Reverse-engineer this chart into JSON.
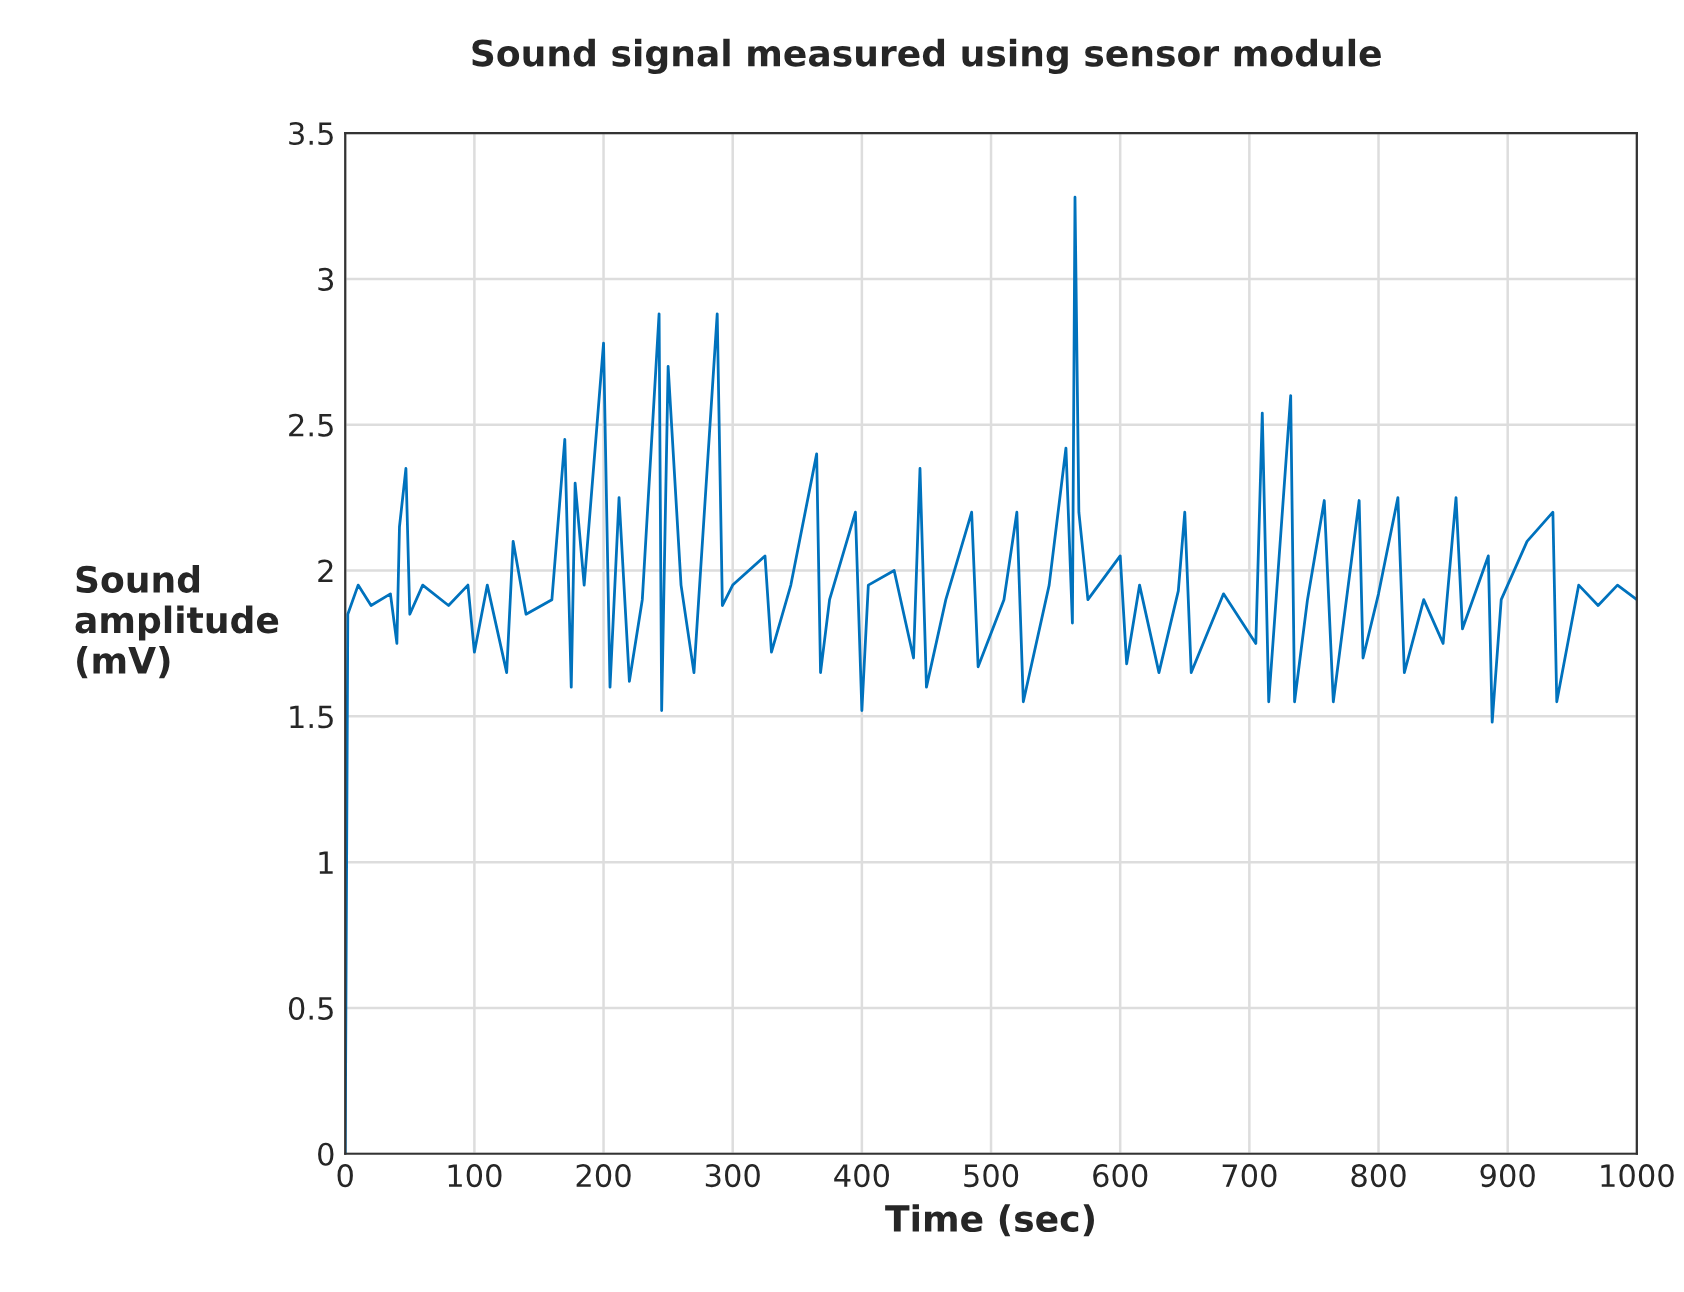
{
  "chart_data": {
    "type": "line",
    "title": "Sound signal measured using sensor module",
    "xlabel": "Time (sec)",
    "ylabel": "Sound\namplitude\n(mV)",
    "xlim": [
      0,
      1000
    ],
    "xticks": [
      0,
      100,
      200,
      300,
      400,
      500,
      600,
      700,
      800,
      900,
      1000
    ],
    "ylim": [
      0,
      3.5
    ],
    "yticks": [
      0,
      0.5,
      1,
      1.5,
      2,
      2.5,
      3,
      3.5
    ],
    "grid": true,
    "series": [
      {
        "color": "#0072bd",
        "x": [
          0,
          2,
          10,
          20,
          35,
          40,
          42,
          47,
          50,
          60,
          80,
          95,
          100,
          110,
          125,
          130,
          140,
          160,
          170,
          175,
          178,
          185,
          200,
          205,
          212,
          220,
          230,
          243,
          245,
          250,
          260,
          270,
          288,
          292,
          300,
          325,
          330,
          345,
          365,
          368,
          375,
          395,
          400,
          405,
          425,
          440,
          445,
          450,
          465,
          485,
          490,
          510,
          520,
          525,
          545,
          558,
          563,
          565,
          568,
          575,
          600,
          605,
          615,
          630,
          645,
          650,
          655,
          680,
          705,
          710,
          715,
          732,
          735,
          745,
          758,
          765,
          785,
          788,
          800,
          815,
          820,
          835,
          850,
          860,
          865,
          885,
          888,
          895,
          915,
          935,
          938,
          955,
          970,
          985,
          1000
        ],
        "values": [
          0,
          1.85,
          1.95,
          1.88,
          1.92,
          1.75,
          2.15,
          2.35,
          1.85,
          1.95,
          1.88,
          1.95,
          1.72,
          1.95,
          1.65,
          2.1,
          1.85,
          1.9,
          2.45,
          1.6,
          2.3,
          1.95,
          2.78,
          1.6,
          2.25,
          1.62,
          1.9,
          2.88,
          1.52,
          2.7,
          1.95,
          1.65,
          2.88,
          1.88,
          1.95,
          2.05,
          1.72,
          1.95,
          2.4,
          1.65,
          1.9,
          2.2,
          1.52,
          1.95,
          2.0,
          1.7,
          2.35,
          1.6,
          1.9,
          2.2,
          1.67,
          1.9,
          2.2,
          1.55,
          1.95,
          2.42,
          1.82,
          3.28,
          2.2,
          1.9,
          2.05,
          1.68,
          1.95,
          1.65,
          1.93,
          2.2,
          1.65,
          1.92,
          1.75,
          2.54,
          1.55,
          2.6,
          1.55,
          1.9,
          2.24,
          1.55,
          2.24,
          1.7,
          1.92,
          2.25,
          1.65,
          1.9,
          1.75,
          2.25,
          1.8,
          2.05,
          1.48,
          1.9,
          2.1,
          2.2,
          1.55,
          1.95,
          1.88,
          1.95,
          1.9
        ]
      }
    ]
  }
}
